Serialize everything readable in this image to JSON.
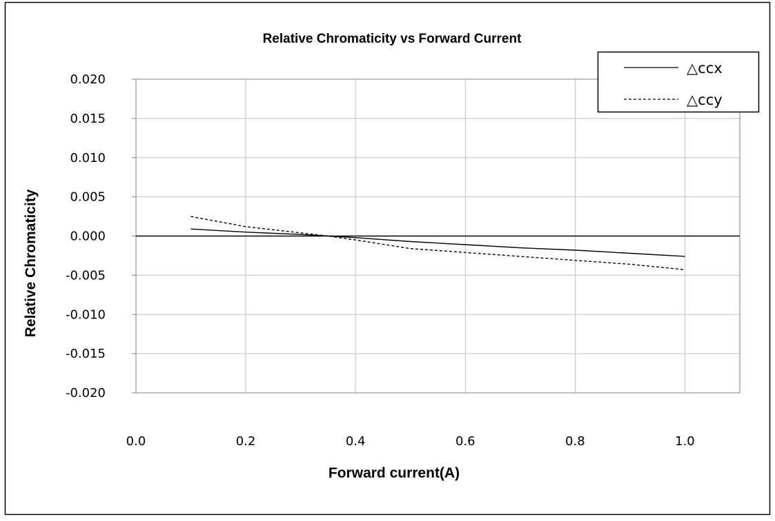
{
  "chart_data": {
    "type": "line",
    "title": "Relative Chromaticity vs Forward Current",
    "xlabel": "Forward current(A)",
    "ylabel": "Relative Chromaticity",
    "xlim": [
      0.0,
      1.1
    ],
    "ylim": [
      -0.02,
      0.02
    ],
    "x_ticks": [
      "0.0",
      "0.2",
      "0.4",
      "0.6",
      "0.8",
      "1.0"
    ],
    "x_tick_values": [
      0.0,
      0.2,
      0.4,
      0.6,
      0.8,
      1.0
    ],
    "y_ticks": [
      "0.020",
      "0.015",
      "0.010",
      "0.005",
      "0.000",
      "-0.005",
      "-0.010",
      "-0.015",
      "-0.020"
    ],
    "y_tick_values": [
      0.02,
      0.015,
      0.01,
      0.005,
      0.0,
      -0.005,
      -0.01,
      -0.015,
      -0.02
    ],
    "grid": true,
    "legend_position": "top-right",
    "x": [
      0.1,
      0.2,
      0.3,
      0.35,
      0.4,
      0.5,
      0.6,
      0.7,
      0.8,
      0.9,
      1.0
    ],
    "series": [
      {
        "name": "△ccx",
        "style": "solid",
        "values": [
          0.0009,
          0.0005,
          0.0002,
          0.0,
          -0.0002,
          -0.0007,
          -0.0011,
          -0.0015,
          -0.0018,
          -0.0022,
          -0.0026
        ]
      },
      {
        "name": "△ccy",
        "style": "dashed",
        "values": [
          0.0025,
          0.0012,
          0.0004,
          0.0,
          -0.0005,
          -0.0016,
          -0.0021,
          -0.0026,
          -0.0031,
          -0.0036,
          -0.0043
        ]
      }
    ],
    "colors": {
      "line": "#000000",
      "grid": "#c0c0c0",
      "frame": "#000000"
    }
  }
}
